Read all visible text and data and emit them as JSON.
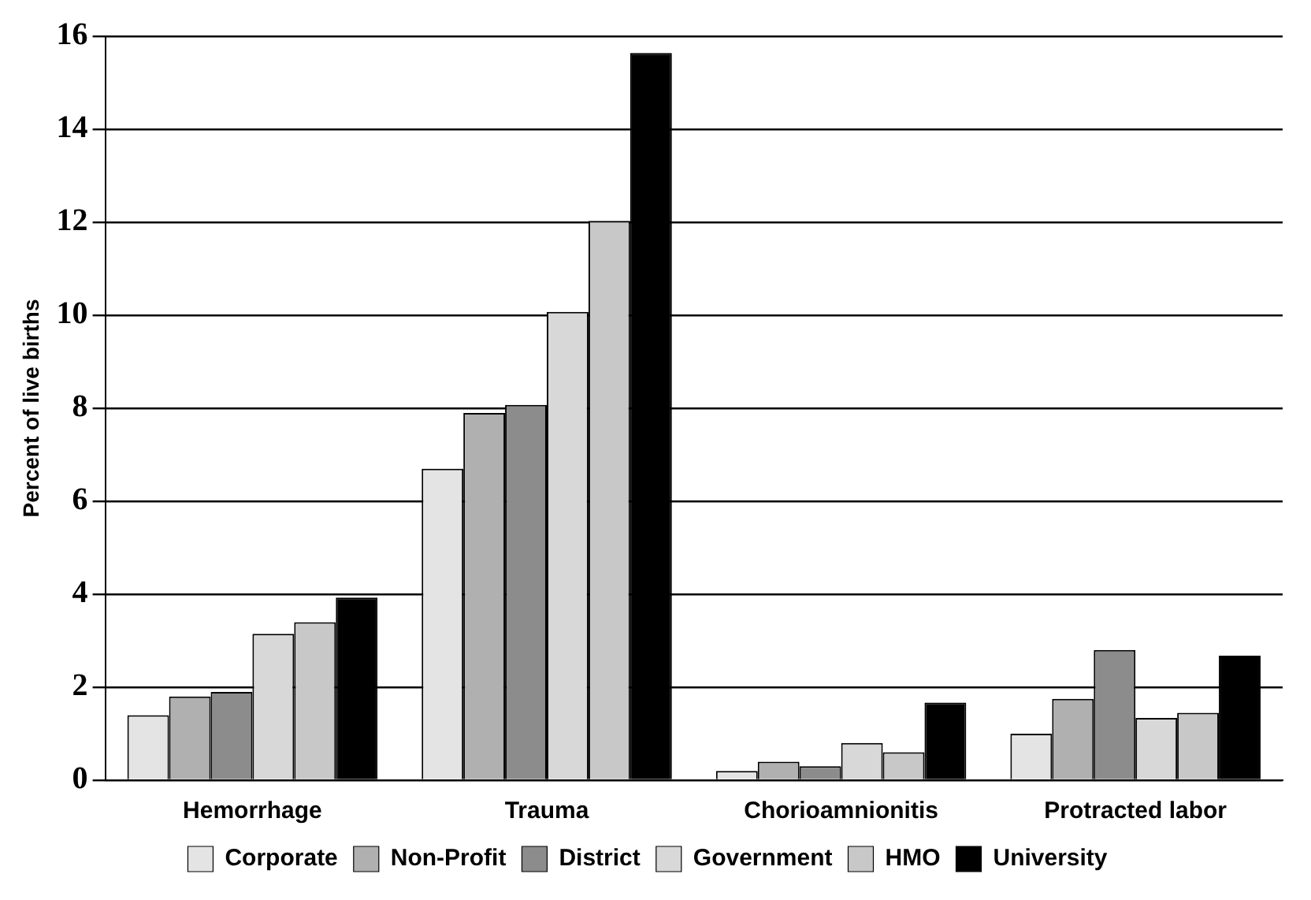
{
  "chart_data": {
    "type": "bar",
    "ylabel": "Percent of live births",
    "categories": [
      "Hemorrhage",
      "Trauma",
      "Chorioamnionitis",
      "Protracted labor"
    ],
    "series": [
      {
        "name": "Corporate",
        "color": "#e4e4e4",
        "values": [
          1.4,
          6.7,
          0.2,
          1.0
        ]
      },
      {
        "name": "Non-Profit",
        "color": "#b0b0b0",
        "values": [
          1.8,
          7.9,
          0.4,
          1.75
        ]
      },
      {
        "name": "District",
        "color": "#8c8c8c",
        "values": [
          1.9,
          8.07,
          0.3,
          2.8
        ]
      },
      {
        "name": "Government",
        "color": "#d8d8d8",
        "values": [
          3.15,
          10.07,
          0.8,
          1.34
        ]
      },
      {
        "name": "HMO",
        "color": "#c8c8c8",
        "values": [
          3.4,
          12.03,
          0.6,
          1.45
        ]
      },
      {
        "name": "University",
        "color": "#000000",
        "values": [
          3.93,
          15.64,
          1.67,
          2.68
        ]
      }
    ],
    "ylim": [
      0,
      16
    ],
    "yticks": [
      0,
      2,
      4,
      6,
      8,
      10,
      12,
      14,
      16
    ],
    "grid": "y",
    "legend": "bottom"
  }
}
